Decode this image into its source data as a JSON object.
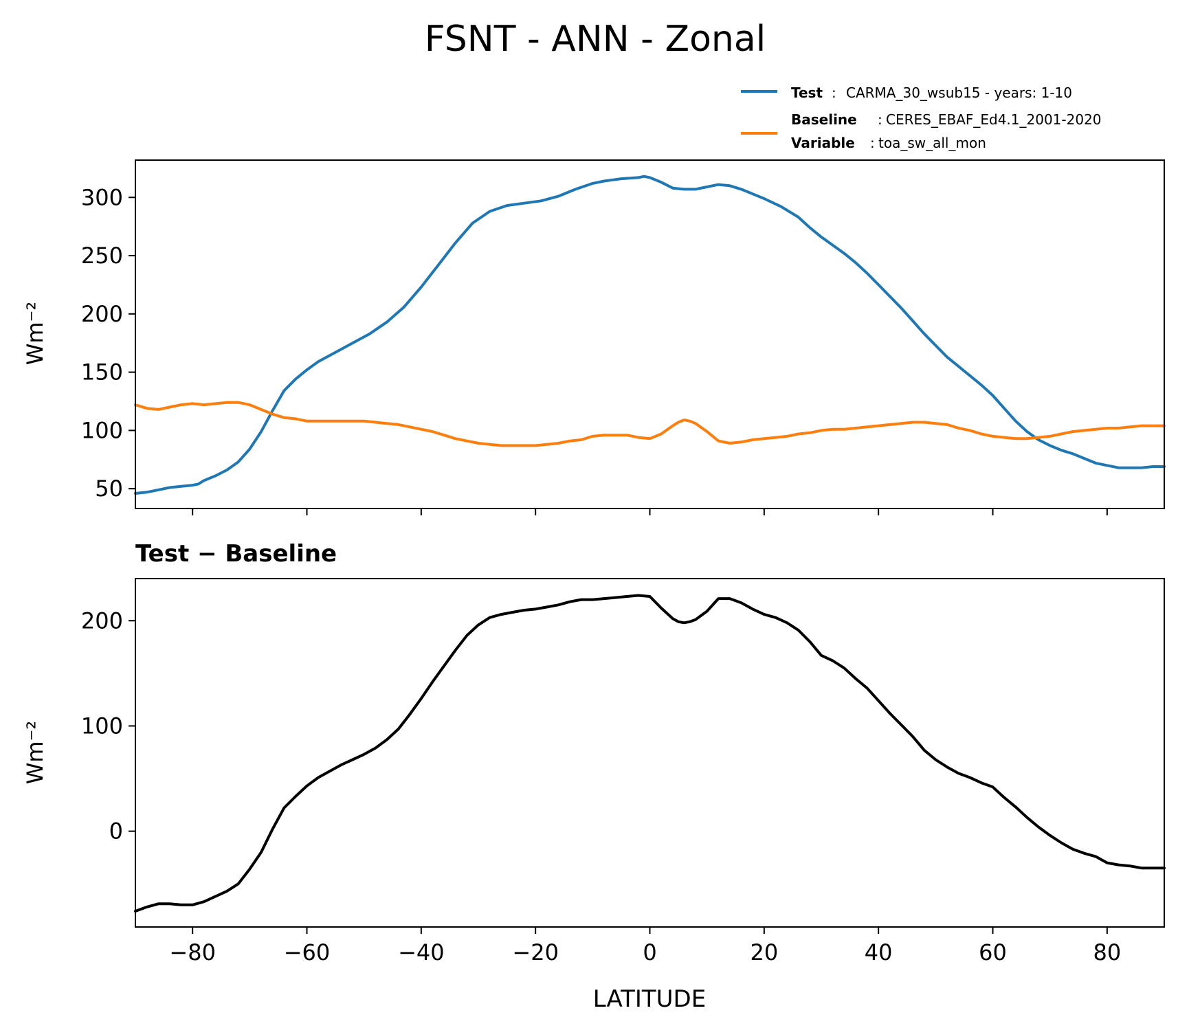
{
  "figure": {
    "title": "FSNT - ANN - Zonal",
    "legend": {
      "test_key": "Test",
      "test_value": "CARMA_30_wsub15 - years: 1-10",
      "baseline_key": "Baseline",
      "baseline_value": "CERES_EBAF_Ed4.1_2001-2020",
      "variable_key": "Variable",
      "variable_value": "toa_sw_all_mon"
    },
    "diff_title": "Test − Baseline",
    "xlabel": "LATITUDE"
  },
  "chart_data": [
    {
      "type": "line",
      "panel": "top",
      "ylabel": "Wm⁻²",
      "xlim": [
        -90,
        90
      ],
      "ylim": [
        33,
        332
      ],
      "xticks": [
        -80,
        -60,
        -40,
        -20,
        0,
        20,
        40,
        60,
        80
      ],
      "yticks": [
        50,
        100,
        150,
        200,
        250,
        300
      ],
      "legend_position": "above plot, right",
      "series": [
        {
          "name": "CARMA_30_wsub15 - years: 1-10",
          "color": "#1f77b4",
          "x": [
            -90,
            -88,
            -86,
            -84,
            -82,
            -80,
            -79,
            -78,
            -76,
            -74,
            -72,
            -70,
            -68,
            -66,
            -64,
            -62,
            -60,
            -58,
            -55,
            -52,
            -49,
            -46,
            -43,
            -40,
            -37,
            -34,
            -31,
            -28,
            -25,
            -22,
            -19,
            -16,
            -13,
            -10,
            -8,
            -5,
            -2,
            -1,
            0,
            2,
            4,
            6,
            8,
            10,
            12,
            14,
            16,
            18,
            20,
            23,
            26,
            28,
            30,
            32,
            34,
            36,
            38,
            40,
            42,
            44,
            46,
            48,
            50,
            52,
            54,
            56,
            58,
            60,
            62,
            64,
            66,
            68,
            70,
            72,
            74,
            76,
            78,
            80,
            82,
            84,
            86,
            88,
            90
          ],
          "values": [
            46,
            47,
            49,
            51,
            52,
            53,
            54,
            57,
            61,
            66,
            73,
            84,
            99,
            117,
            134,
            144,
            152,
            159,
            167,
            175,
            183,
            193,
            206,
            223,
            242,
            261,
            278,
            288,
            293,
            295,
            297,
            301,
            307,
            312,
            314,
            316,
            317,
            318,
            317,
            313,
            308,
            307,
            307,
            309,
            311,
            310,
            307,
            303,
            299,
            292,
            283,
            274,
            266,
            259,
            252,
            244,
            235,
            225,
            215,
            205,
            194,
            183,
            173,
            163,
            155,
            147,
            139,
            130,
            119,
            108,
            99,
            92,
            87,
            83,
            80,
            76,
            72,
            70,
            68,
            68,
            68,
            69,
            69
          ]
        },
        {
          "name": "CERES_EBAF_Ed4.1_2001-2020",
          "color": "#ff7f0e",
          "x": [
            -90,
            -88,
            -86,
            -84,
            -82,
            -80,
            -78,
            -76,
            -74,
            -72,
            -70,
            -68,
            -66,
            -64,
            -62,
            -60,
            -58,
            -56,
            -54,
            -52,
            -50,
            -48,
            -46,
            -44,
            -42,
            -40,
            -38,
            -36,
            -34,
            -32,
            -30,
            -28,
            -26,
            -24,
            -22,
            -20,
            -18,
            -16,
            -14,
            -12,
            -10,
            -8,
            -6,
            -4,
            -2,
            0,
            2,
            4,
            5,
            6,
            7,
            8,
            10,
            12,
            14,
            16,
            18,
            20,
            22,
            24,
            26,
            28,
            30,
            32,
            34,
            36,
            38,
            40,
            42,
            44,
            46,
            48,
            50,
            52,
            54,
            56,
            58,
            60,
            62,
            64,
            66,
            68,
            70,
            72,
            74,
            76,
            78,
            80,
            82,
            84,
            86,
            88,
            90
          ],
          "values": [
            122,
            119,
            118,
            120,
            122,
            123,
            122,
            123,
            124,
            124,
            122,
            118,
            114,
            111,
            110,
            108,
            108,
            108,
            108,
            108,
            108,
            107,
            106,
            105,
            103,
            101,
            99,
            96,
            93,
            91,
            89,
            88,
            87,
            87,
            87,
            87,
            88,
            89,
            91,
            92,
            95,
            96,
            96,
            96,
            94,
            93,
            97,
            104,
            107,
            109,
            108,
            106,
            99,
            91,
            89,
            90,
            92,
            93,
            94,
            95,
            97,
            98,
            100,
            101,
            101,
            102,
            103,
            104,
            105,
            106,
            107,
            107,
            106,
            105,
            102,
            100,
            97,
            95,
            94,
            93,
            93,
            94,
            95,
            97,
            99,
            100,
            101,
            102,
            102,
            103,
            104,
            104,
            104
          ]
        }
      ]
    },
    {
      "type": "line",
      "panel": "bottom",
      "title": "Test − Baseline",
      "ylabel": "Wm⁻²",
      "xlabel": "LATITUDE",
      "xlim": [
        -90,
        90
      ],
      "ylim": [
        -91,
        240
      ],
      "xticks": [
        -80,
        -60,
        -40,
        -20,
        0,
        20,
        40,
        60,
        80
      ],
      "xtick_labels": [
        "−80",
        "−60",
        "−40",
        "−20",
        "0",
        "20",
        "40",
        "60",
        "80"
      ],
      "yticks": [
        0,
        100,
        200
      ],
      "series": [
        {
          "name": "",
          "color": "#000000",
          "x": [
            -90,
            -88,
            -86,
            -84,
            -82,
            -80,
            -78,
            -76,
            -74,
            -72,
            -70,
            -68,
            -66,
            -64,
            -62,
            -60,
            -58,
            -56,
            -54,
            -52,
            -50,
            -48,
            -46,
            -44,
            -42,
            -40,
            -38,
            -36,
            -34,
            -32,
            -30,
            -28,
            -26,
            -24,
            -22,
            -20,
            -18,
            -16,
            -14,
            -12,
            -10,
            -8,
            -6,
            -4,
            -2,
            0,
            2,
            4,
            5,
            6,
            7,
            8,
            10,
            12,
            14,
            16,
            18,
            20,
            22,
            24,
            26,
            28,
            30,
            32,
            34,
            36,
            38,
            40,
            42,
            44,
            46,
            48,
            50,
            52,
            54,
            56,
            58,
            60,
            62,
            64,
            66,
            68,
            70,
            72,
            74,
            76,
            78,
            80,
            82,
            84,
            86,
            88,
            90
          ],
          "values": [
            -76,
            -72,
            -69,
            -69,
            -70,
            -70,
            -67,
            -62,
            -57,
            -50,
            -36,
            -20,
            2,
            22,
            33,
            43,
            51,
            57,
            63,
            68,
            73,
            79,
            87,
            97,
            111,
            126,
            142,
            157,
            172,
            186,
            196,
            203,
            206,
            208,
            210,
            211,
            213,
            215,
            218,
            220,
            220,
            221,
            222,
            223,
            224,
            223,
            212,
            202,
            199,
            198,
            199,
            201,
            209,
            221,
            221,
            217,
            211,
            206,
            203,
            198,
            191,
            180,
            167,
            162,
            155,
            145,
            136,
            124,
            112,
            101,
            90,
            77,
            68,
            61,
            55,
            51,
            46,
            42,
            32,
            23,
            13,
            4,
            -4,
            -11,
            -17,
            -21,
            -24,
            -30,
            -32,
            -33,
            -35,
            -35,
            -35
          ]
        }
      ]
    }
  ]
}
